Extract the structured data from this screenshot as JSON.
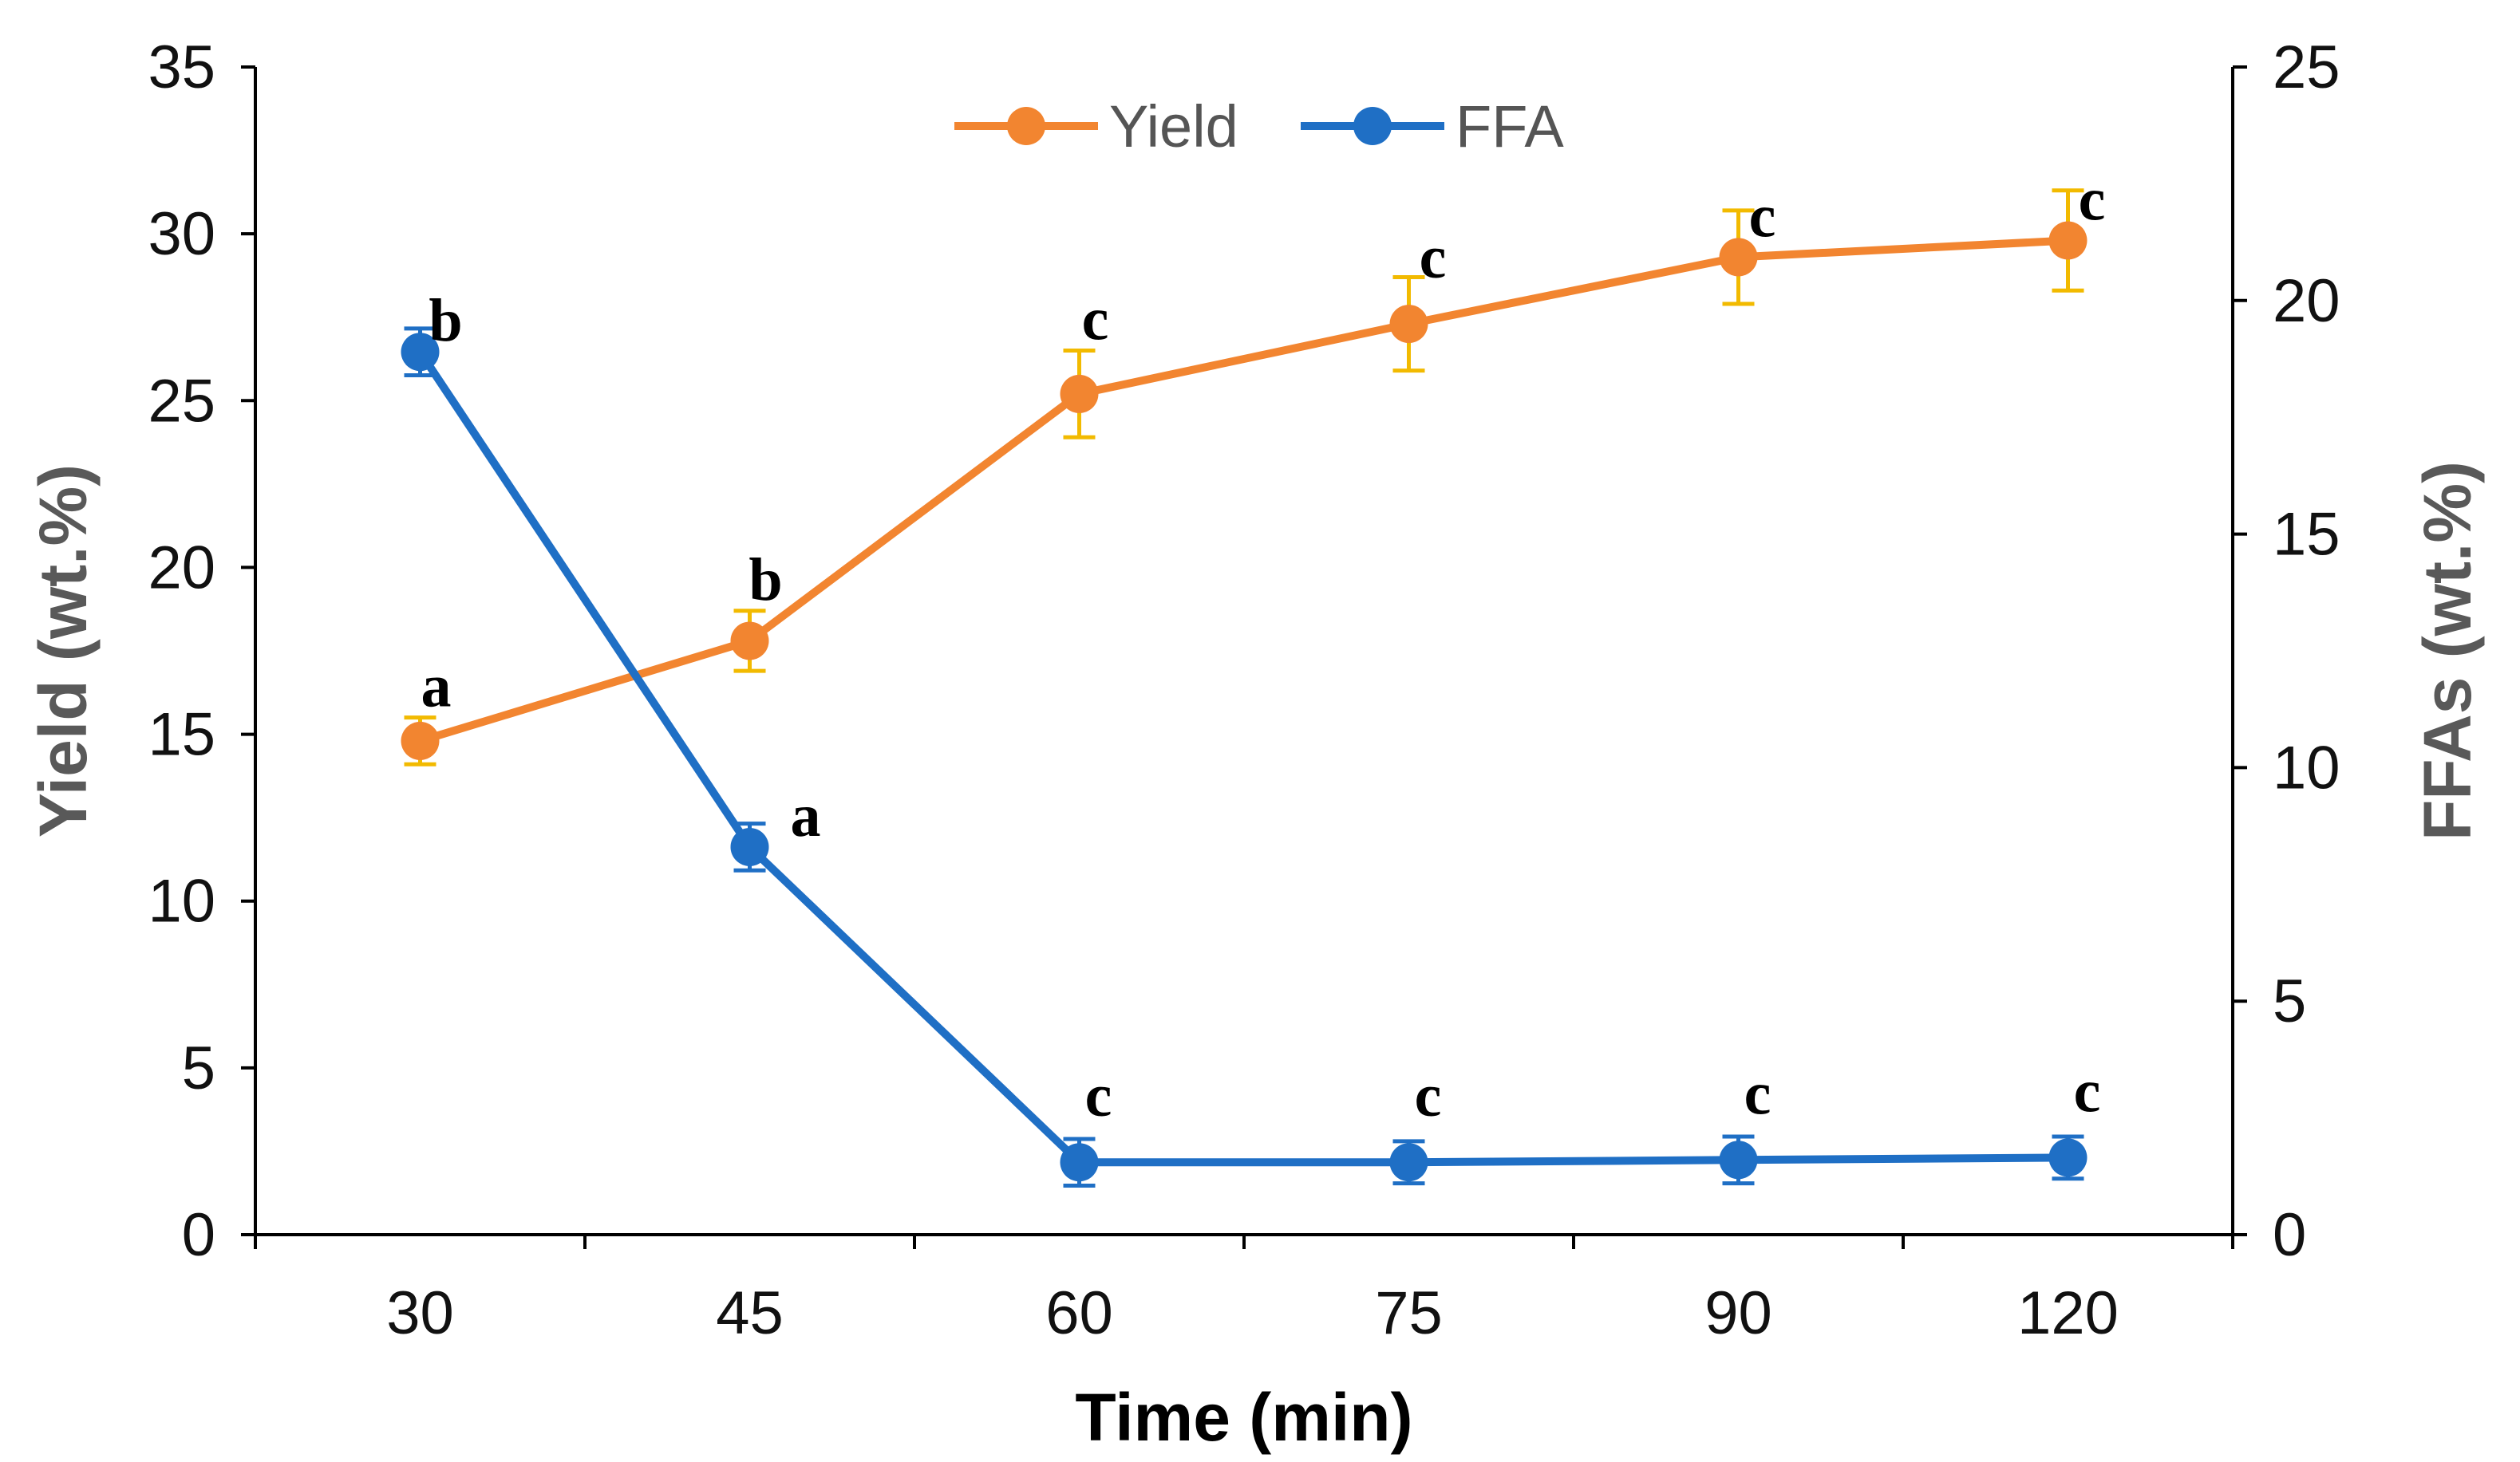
{
  "chart_data": {
    "type": "line",
    "categories": [
      "30",
      "45",
      "60",
      "75",
      "90",
      "120"
    ],
    "xlabel": "Time (min)",
    "y_left": {
      "label": "Yield (wt.%)",
      "range": [
        0,
        35
      ],
      "ticks": [
        "0",
        "5",
        "10",
        "15",
        "20",
        "25",
        "30",
        "35"
      ]
    },
    "y_right": {
      "label": "FFAs (wt.%)",
      "range": [
        0,
        25
      ],
      "ticks": [
        "0",
        "5",
        "10",
        "15",
        "20",
        "25"
      ]
    },
    "legend_position": "top-center",
    "series": [
      {
        "name": "Yield",
        "axis": "left",
        "color": "#F28530",
        "error_color": "#F2BA00",
        "values": [
          14.8,
          17.8,
          25.2,
          27.3,
          29.3,
          29.8
        ],
        "errors": [
          0.7,
          0.9,
          1.3,
          1.4,
          1.4,
          1.5
        ],
        "letters": [
          "a",
          "b",
          "c",
          "c",
          "c",
          "c"
        ]
      },
      {
        "name": "FFA",
        "axis": "right",
        "color": "#1F6FC5",
        "error_color": "#1F6FC5",
        "values": [
          18.9,
          8.3,
          1.55,
          1.55,
          1.6,
          1.65
        ],
        "errors": [
          0.5,
          0.5,
          0.5,
          0.45,
          0.5,
          0.45
        ],
        "letters": [
          "b",
          "a",
          "c",
          "c",
          "c",
          "c"
        ]
      }
    ]
  }
}
